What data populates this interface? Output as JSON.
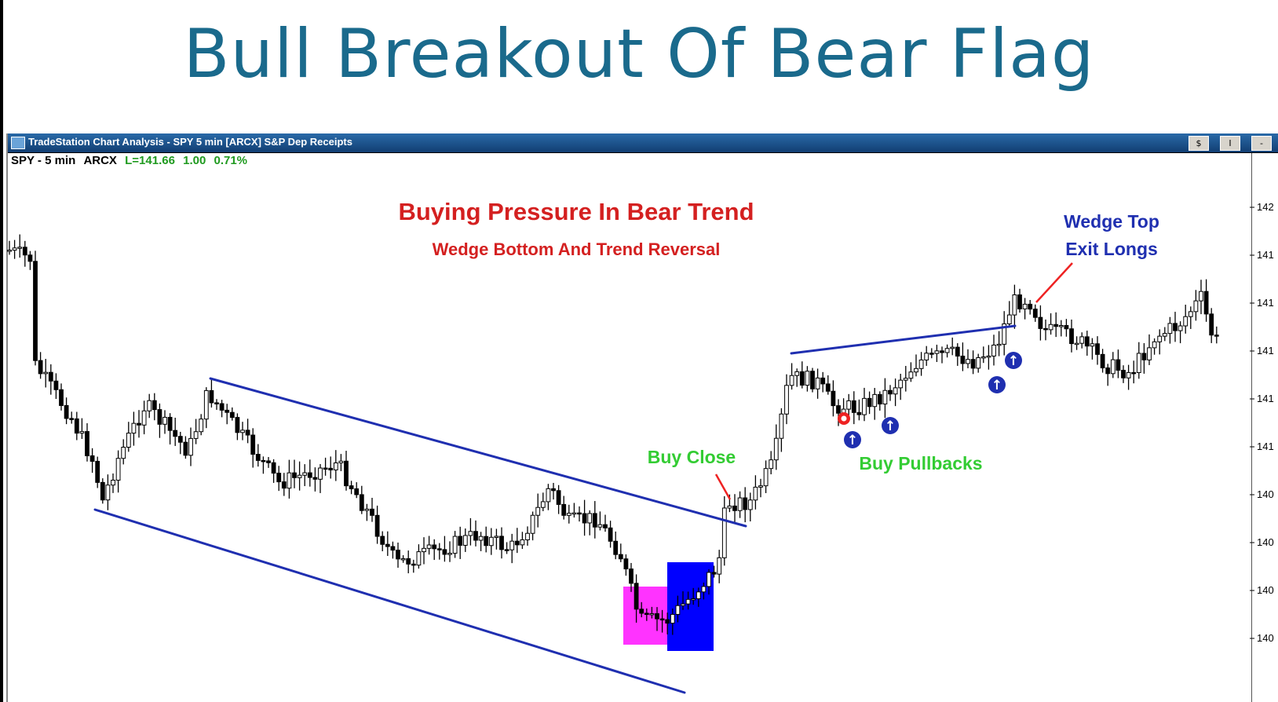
{
  "slide": {
    "title": "Bull Breakout Of Bear Flag"
  },
  "window": {
    "title": "TradeStation Chart Analysis - SPY 5 min [ARCX] S&P Dep Receipts",
    "buttons": [
      "$",
      "I",
      "-"
    ]
  },
  "quote": {
    "symbol": "SPY - 5 min",
    "exchange": "ARCX",
    "last": "L=141.66",
    "change": "1.00",
    "change_pct": "0.71%"
  },
  "colors": {
    "title": "#1a6a8c",
    "trendline": "#1f2fb0",
    "red_text": "#d42020",
    "green_text": "#33cc33",
    "blue_text": "#1f2fb0",
    "candle": "#000000",
    "pink_box": "#ff33ff",
    "blue_box": "#0000ff",
    "buy_marker": "#1f2fb0",
    "sell_marker": "#ee2222"
  },
  "chart_data": {
    "type": "candlestick",
    "symbol": "SPY",
    "interval": "5 min",
    "tick_labels": [
      "142",
      "141",
      "141",
      "141",
      "141",
      "141",
      "140",
      "140",
      "140",
      "140"
    ],
    "annotations": [
      {
        "text": "Buying Pressure In Bear Trend",
        "color": "red"
      },
      {
        "text": "Wedge Bottom And Trend Reversal",
        "color": "red"
      },
      {
        "text": "Buy Close",
        "color": "green"
      },
      {
        "text": "Buy Pullbacks",
        "color": "green"
      },
      {
        "text": "Wedge Top",
        "color": "blue"
      },
      {
        "text": "Exit Longs",
        "color": "blue"
      }
    ],
    "markers": [
      {
        "type": "buy",
        "label": "↑"
      },
      {
        "type": "buy",
        "label": "↑"
      },
      {
        "type": "buy",
        "label": "↑"
      },
      {
        "type": "buy",
        "label": "↑"
      },
      {
        "type": "sell",
        "label": ""
      }
    ]
  }
}
